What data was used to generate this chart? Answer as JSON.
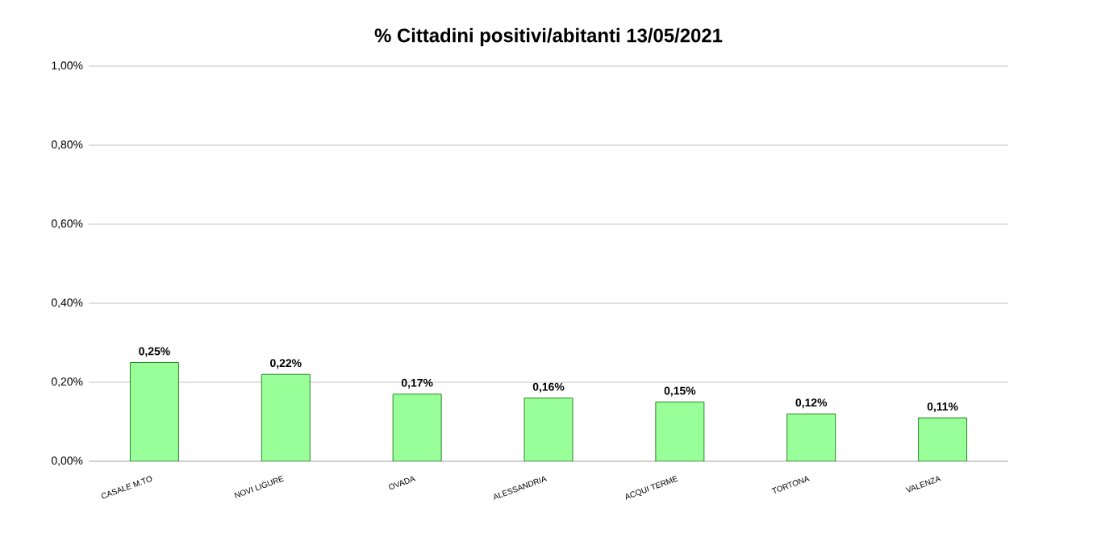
{
  "chart_data": {
    "type": "bar",
    "title": "% Cittadini positivi/abitanti 13/05/2021",
    "categories": [
      "CASALE M.TO",
      "NOVI LIGURE",
      "OVADA",
      "ALESSANDRIA",
      "ACQUI TERME",
      "TORTONA",
      "VALENZA"
    ],
    "values": [
      0.25,
      0.22,
      0.17,
      0.16,
      0.15,
      0.12,
      0.11
    ],
    "value_labels": [
      "0,25%",
      "0,22%",
      "0,17%",
      "0,16%",
      "0,15%",
      "0,12%",
      "0,11%"
    ],
    "color": "#99ff99",
    "ylim": [
      0,
      1
    ],
    "yticks": [
      {
        "value": 0,
        "label": "0,00%"
      },
      {
        "value": 0.2,
        "label": "0,20%"
      },
      {
        "value": 0.4,
        "label": "0,40%"
      },
      {
        "value": 0.6,
        "label": "0,60%"
      },
      {
        "value": 0.8,
        "label": "0,80%"
      },
      {
        "value": 1,
        "label": "1,00%"
      }
    ],
    "grid": "y"
  }
}
